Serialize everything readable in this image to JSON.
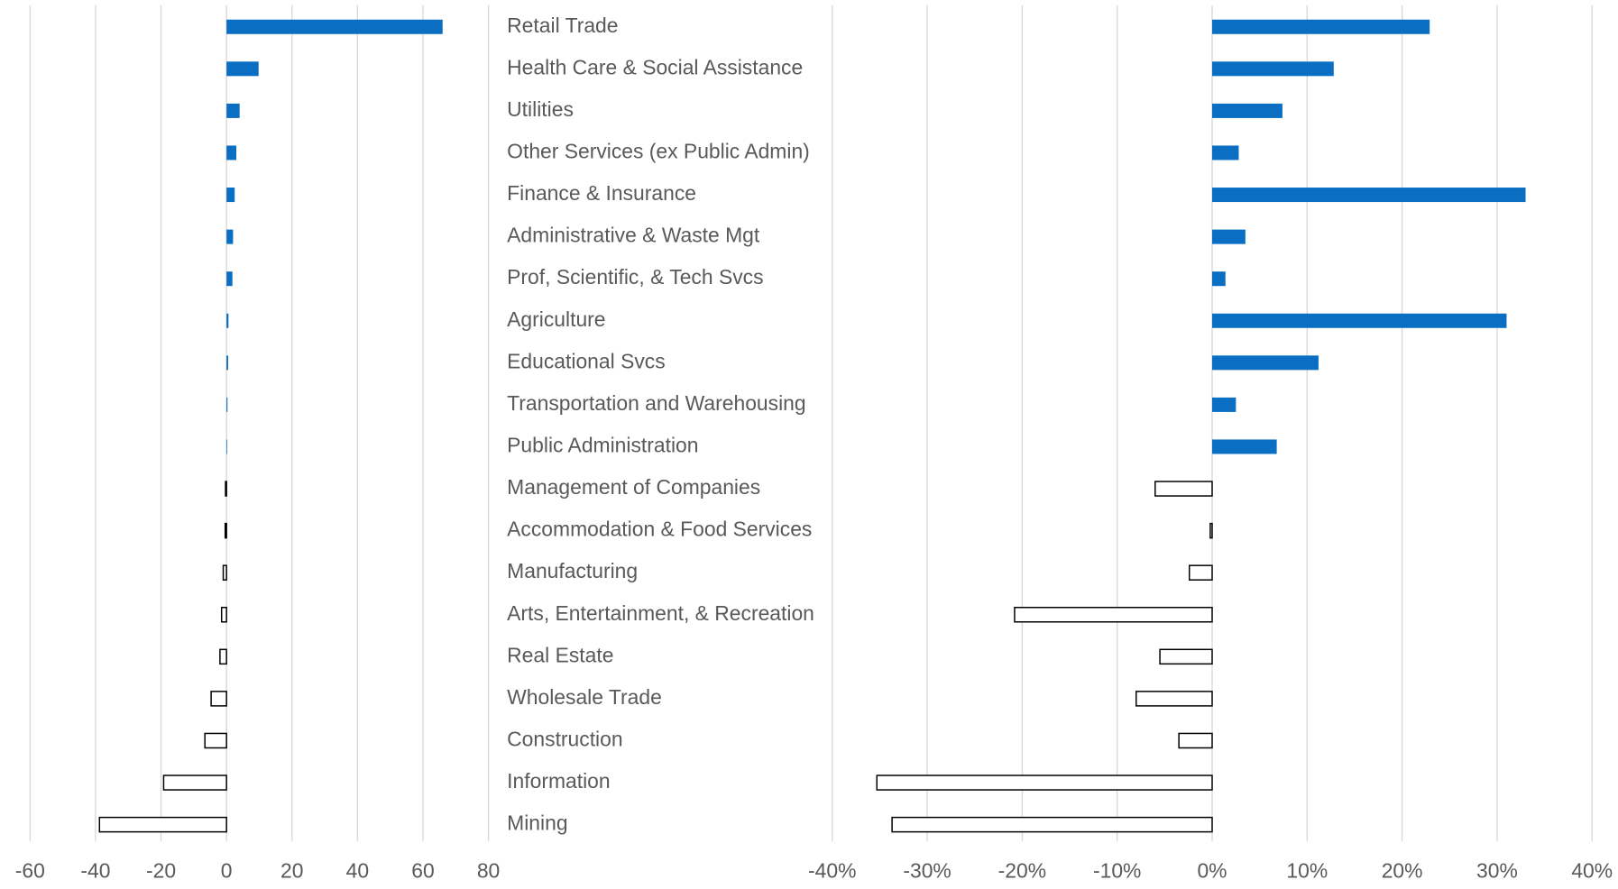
{
  "chart_data": [
    {
      "type": "bar",
      "orientation": "horizontal",
      "categories": [
        "Retail Trade",
        "Health Care & Social Assistance",
        "Utilities",
        "Other Services (ex Public Admin)",
        "Finance & Insurance",
        "Administrative & Waste Mgt",
        "Prof, Scientific, & Tech Svcs",
        "Agriculture",
        "Educational Svcs",
        "Transportation and Warehousing",
        "Public Administration",
        "Management of Companies",
        "Accommodation & Food Services",
        "Manufacturing",
        "Arts, Entertainment, & Recreation",
        "Real Estate",
        "Wholesale Trade",
        "Construction",
        "Information",
        "Mining"
      ],
      "values": [
        66,
        9.8,
        4,
        3,
        2.5,
        2,
        1.8,
        0.6,
        0.5,
        0.3,
        0.2,
        -0.3,
        -0.4,
        -1,
        -1.5,
        -2,
        -4.7,
        -6.6,
        -19.2,
        -38.8
      ],
      "color": "#0a6fc2",
      "negative_fill": "#ffffff",
      "negative_stroke": "#000000",
      "xlim": [
        -60,
        80
      ],
      "xticks": [
        -60,
        -40,
        -20,
        0,
        20,
        40,
        60,
        80
      ],
      "grid": true
    },
    {
      "type": "bar",
      "orientation": "horizontal",
      "values": [
        22.9,
        12.8,
        7.4,
        2.8,
        33,
        3.5,
        1.4,
        31,
        11.2,
        2.5,
        6.8,
        -6,
        -0.2,
        -2.4,
        -20.8,
        -5.5,
        -8,
        -3.5,
        -35.3,
        -33.7
      ],
      "color": "#0a6fc2",
      "negative_fill": "#ffffff",
      "negative_stroke": "#000000",
      "xlim": [
        -40,
        40
      ],
      "xticks": [
        {
          "value": -40,
          "label": "-40%"
        },
        {
          "value": -30,
          "label": "-30%"
        },
        {
          "value": -20,
          "label": "-20%"
        },
        {
          "value": -10,
          "label": "-10%"
        },
        {
          "value": 0,
          "label": "0%"
        },
        {
          "value": 10,
          "label": "10%"
        },
        {
          "value": 20,
          "label": "20%"
        },
        {
          "value": 30,
          "label": "30%"
        },
        {
          "value": 40,
          "label": "40%"
        }
      ],
      "grid": true
    }
  ]
}
